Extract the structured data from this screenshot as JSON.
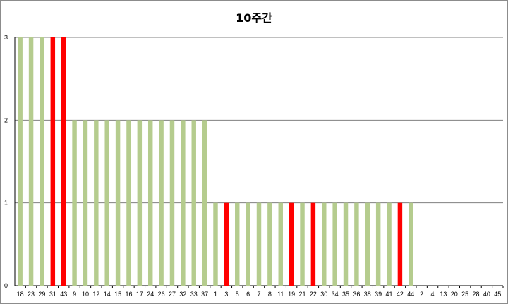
{
  "chart_data": {
    "type": "bar",
    "title": "10주간",
    "xlabel": "",
    "ylabel": "",
    "ylim": [
      0,
      3
    ],
    "yticks": [
      0,
      1,
      2,
      3
    ],
    "grid": true,
    "legend": "none",
    "colors": {
      "normal": "#b5cc8e",
      "highlight": "#ff0000"
    },
    "categories": [
      "18",
      "23",
      "29",
      "31",
      "43",
      "9",
      "10",
      "12",
      "14",
      "15",
      "16",
      "17",
      "24",
      "26",
      "27",
      "32",
      "33",
      "37",
      "1",
      "3",
      "5",
      "6",
      "7",
      "8",
      "11",
      "19",
      "21",
      "22",
      "30",
      "34",
      "35",
      "36",
      "38",
      "39",
      "41",
      "42",
      "44",
      "2",
      "4",
      "13",
      "20",
      "25",
      "28",
      "40",
      "45"
    ],
    "values": [
      3,
      3,
      3,
      3,
      3,
      2,
      2,
      2,
      2,
      2,
      2,
      2,
      2,
      2,
      2,
      2,
      2,
      2,
      1,
      1,
      1,
      1,
      1,
      1,
      1,
      1,
      1,
      1,
      1,
      1,
      1,
      1,
      1,
      1,
      1,
      1,
      1,
      0,
      0,
      0,
      0,
      0,
      0,
      0,
      0
    ],
    "highlighted": [
      "31",
      "43",
      "3",
      "19",
      "22",
      "42"
    ]
  }
}
